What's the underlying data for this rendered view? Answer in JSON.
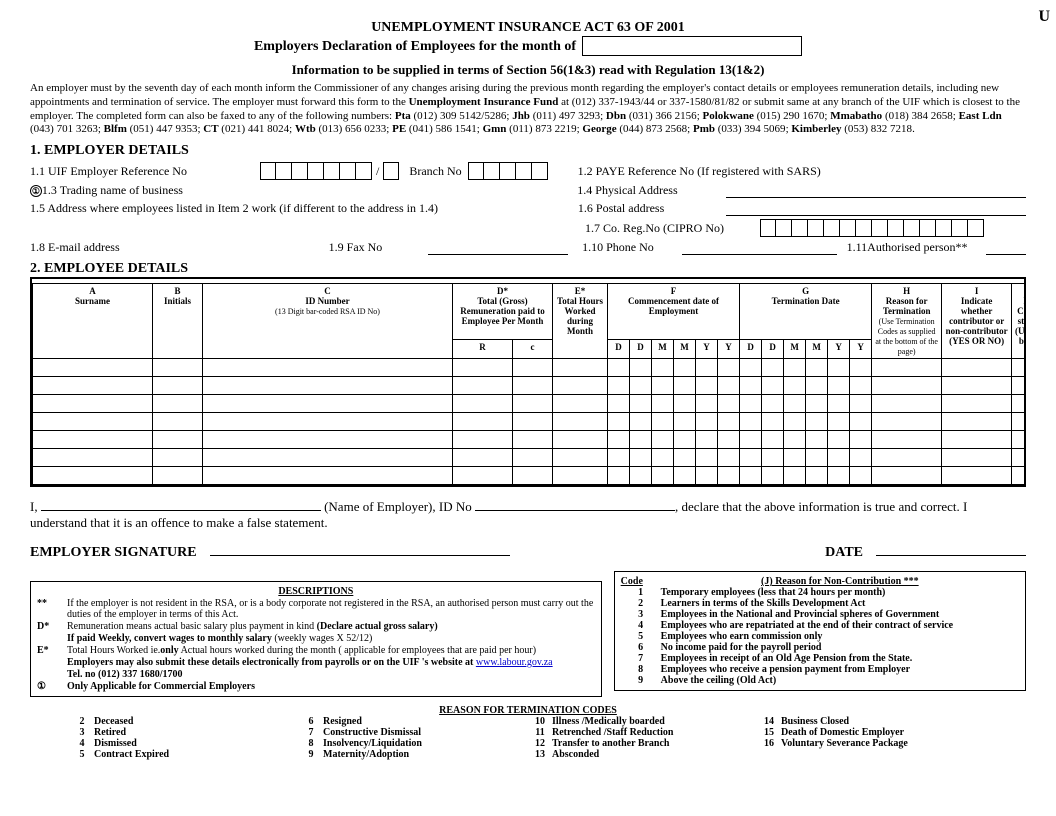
{
  "header": {
    "act_title": "UNEMPLOYMENT INSURANCE ACT 63 OF 2001",
    "subtitle_prefix": "Employers Declaration of Employees for the month of",
    "info_line": "Information to be supplied in terms of Section 56(1&3) read with Regulation 13(1&2)",
    "corner_u": "U"
  },
  "instructions": {
    "para1_a": "An employer must by the seventh day of each month inform the Commissioner of any changes arising during the previous month regarding the employer's contact details or employees remuneration details, including new appointments and termination of service. The employer must forward this form to the ",
    "fund_bold": "Unemployment Insurance Fund",
    "para1_b": " at (012) 337-1943/44 or 337-1580/81/82 or submit same at any branch of the UIF which is closest to the employer. The completed form can also be faxed to any of the following numbers: ",
    "offices": [
      {
        "city": "Pta",
        "num": "(012) 309 5142/5286"
      },
      {
        "city": "Jhb",
        "num": "(011) 497 3293"
      },
      {
        "city": "Dbn",
        "num": "(031) 366 2156"
      },
      {
        "city": "Polokwane",
        "num": "(015) 290 1670"
      },
      {
        "city": "Mmabatho",
        "num": "(018) 384 2658"
      },
      {
        "city": "East Ldn",
        "num": "(043) 701 3263"
      },
      {
        "city": "Blfm",
        "num": "(051) 447 9353"
      },
      {
        "city": "CT",
        "num": "(021) 441 8024"
      },
      {
        "city": "Wtb",
        "num": "(013) 656 0233"
      },
      {
        "city": "PE",
        "num": "(041) 586 1541"
      },
      {
        "city": "Gmn",
        "num": "(011) 873 2219"
      },
      {
        "city": "George",
        "num": "(044) 873 2568"
      },
      {
        "city": "Pmb",
        "num": "(033) 394 5069"
      },
      {
        "city": "Kimberley",
        "num": "(053) 832 7218"
      }
    ]
  },
  "employer_details": {
    "heading": "1.   EMPLOYER DETAILS",
    "r11": "1.1   UIF Employer Reference No",
    "branch": "Branch No",
    "r12": "1.2   PAYE Reference No (If registered with SARS)",
    "r13": "1.3  Trading name of business",
    "r14": "1.4   Physical Address",
    "r15": "1.5   Address where employees listed in Item 2 work (if different to the address in 1.4)",
    "r16": "1.6   Postal address",
    "r17": "1.7   Co. Reg.No (CIPRO No)",
    "r18": "1.8   E-mail address",
    "r19": "1.9    Fax No",
    "r110": "1.10  Phone No",
    "r111": "1.11Authorised person**"
  },
  "employee_details": {
    "heading": "2.    EMPLOYEE DETAILS"
  },
  "table": {
    "cols": {
      "A": {
        "letter": "A",
        "label": "Surname"
      },
      "B": {
        "letter": "B",
        "label": "Initials"
      },
      "C": {
        "letter": "C",
        "label": "ID Number",
        "sub": "(13 Digit bar-coded RSA ID No)"
      },
      "D": {
        "letter": "D*",
        "label": "Total (Gross) Remuneration paid to Employee Per Month",
        "r": "R",
        "c": "c"
      },
      "E": {
        "letter": "E*",
        "label": "Total Hours Worked during Month"
      },
      "F": {
        "letter": "F",
        "label": "Commencement date of Employment"
      },
      "G": {
        "letter": "G",
        "label": "Termination Date"
      },
      "H": {
        "letter": "H",
        "label": "Reason for Termination",
        "sub": "(Use Termination Codes as supplied at the bottom of the page)"
      },
      "I": {
        "letter": "I",
        "label": "Indicate whether contributor or non-contributor (YES OR NO)"
      },
      "J": {
        "letter": "J",
        "label": "If Cont state (Use c bott"
      }
    },
    "date_cells": [
      "D",
      "D",
      "M",
      "M",
      "Y",
      "Y"
    ],
    "blank_rows": 7
  },
  "declaration": {
    "i": "I, ",
    "name_of_emp": " (Name of Employer), ID No ",
    "declare": ", declare that the above information is true and correct.  I understand that it is an offence to make a false statement.",
    "sig_label": "EMPLOYER SIGNATURE",
    "date_label": "DATE"
  },
  "descriptions": {
    "title": "DESCRIPTIONS",
    "rows": [
      {
        "k": "**",
        "t": "If the employer is not resident in the RSA, or is a body corporate not registered in the RSA, an authorised person must carry out the duties of the employer in terms of this Act."
      },
      {
        "k": "D*",
        "t_pre": "Remuneration means actual basic salary plus payment in kind ",
        "t_bold": "(Declare actual gross salary)"
      },
      {
        "k": "",
        "t_bold": "If paid Weekly, convert wages to monthly salary",
        "t_post": "  (weekly wages X 52/12)"
      },
      {
        "k": "E*",
        "t_pre": "Total Hours Worked ie.",
        "t_post": "  Actual hours worked during the month (",
        "t_bold": "only",
        "t_post2": " applicable for employees that are paid per hour)"
      },
      {
        "k": "",
        "t_bold": "Employers may also submit these details electronically from payrolls or on the UIF 's website at ",
        "link": "www.labour.gov.za"
      },
      {
        "k": "",
        "t_bold": "Tel. no (012) 337 1680/1700"
      },
      {
        "k": "①",
        "t_bold": "Only Applicable for Commercial Employers"
      }
    ]
  },
  "reasons": {
    "title": "(J) Reason for Non-Contribution ***",
    "code_hdr": "Code",
    "items": [
      {
        "n": "1",
        "t": "Temporary employees (less that 24 hours per month)"
      },
      {
        "n": "2",
        "t": "Learners in terms of the Skills Development Act"
      },
      {
        "n": "3",
        "t": "Employees in the National and Provincial spheres of Government"
      },
      {
        "n": "4",
        "t": "Employees who are repatriated at the end of their contract of service"
      },
      {
        "n": "5",
        "t": "Employees who earn commission only"
      },
      {
        "n": "6",
        "t": "No income paid for the payroll period"
      },
      {
        "n": "7",
        "t": "Employees in receipt of an Old Age Pension from the State."
      },
      {
        "n": "8",
        "t": "Employees who receive a pension payment from Employer"
      },
      {
        "n": "9",
        "t": "Above the ceiling (Old Act)"
      }
    ]
  },
  "term_codes": {
    "title": "REASON FOR TERMINATION CODES",
    "items": [
      {
        "n": "2",
        "t": "Deceased"
      },
      {
        "n": "3",
        "t": "Retired"
      },
      {
        "n": "4",
        "t": "Dismissed"
      },
      {
        "n": "5",
        "t": "Contract Expired"
      },
      {
        "n": "6",
        "t": "Resigned"
      },
      {
        "n": "7",
        "t": "Constructive Dismissal"
      },
      {
        "n": "8",
        "t": "Insolvency/Liquidation"
      },
      {
        "n": "9",
        "t": "Maternity/Adoption"
      },
      {
        "n": "10",
        "t": "Illness /Medically boarded"
      },
      {
        "n": "11",
        "t": "Retrenched /Staff Reduction"
      },
      {
        "n": "12",
        "t": "Transfer to another Branch"
      },
      {
        "n": "13",
        "t": "Absconded"
      },
      {
        "n": "14",
        "t": "Business Closed"
      },
      {
        "n": "15",
        "t": "Death of Domestic Employer"
      },
      {
        "n": "16",
        "t": "Voluntary Severance Package"
      }
    ]
  }
}
